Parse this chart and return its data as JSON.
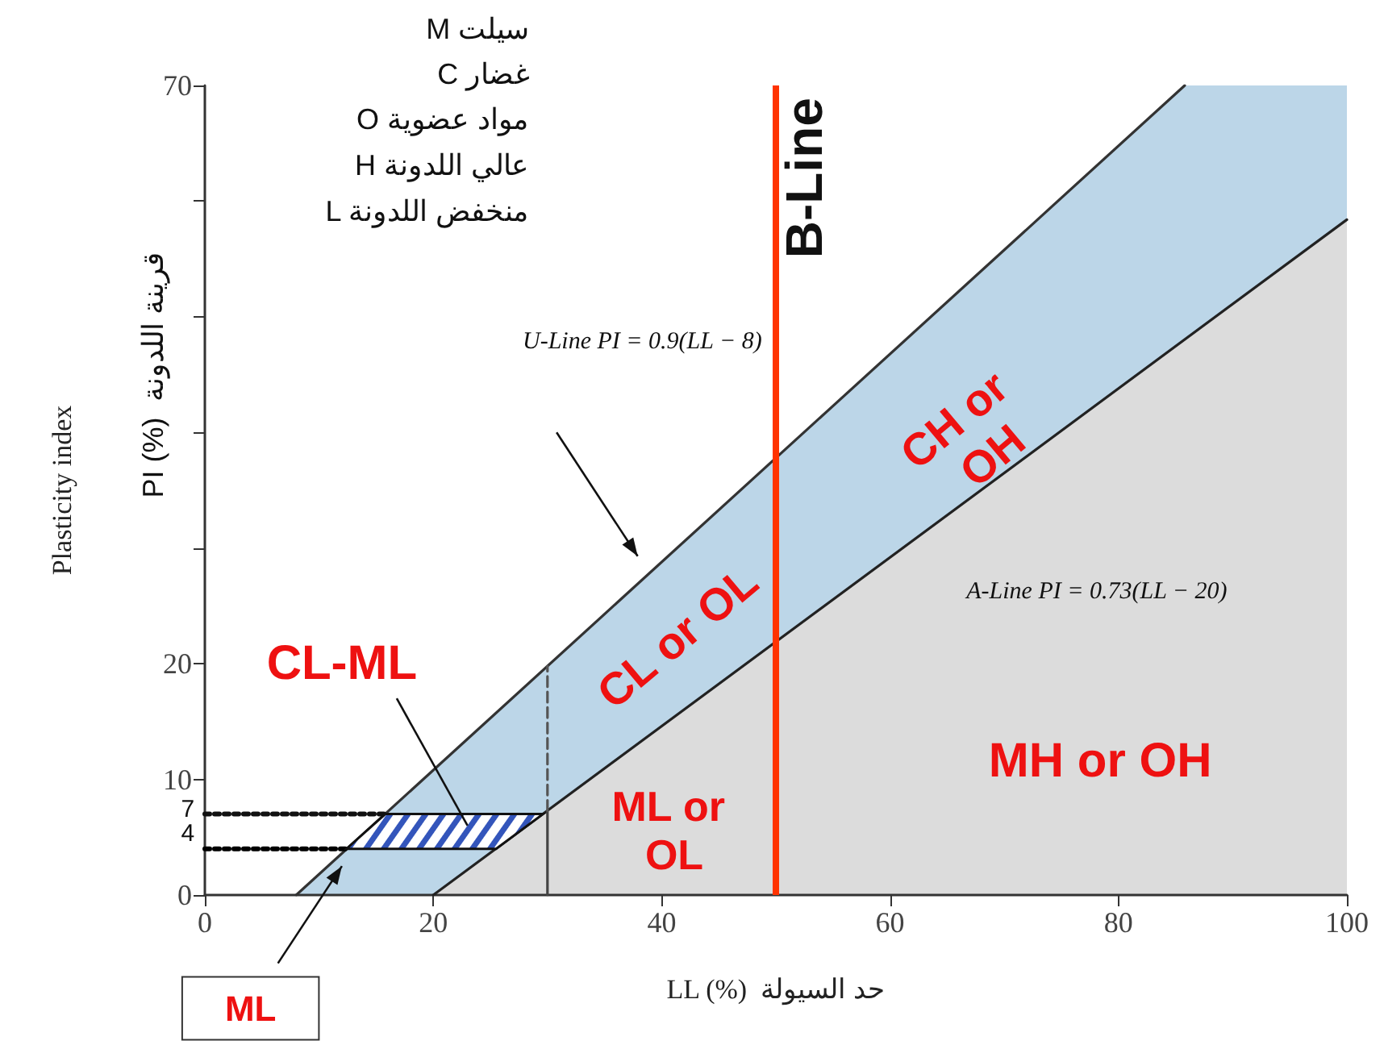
{
  "chart_data": {
    "type": "line",
    "xlabel": "LL (%)  حد السيولة",
    "ylabel": "Plasticity index",
    "xlim": [
      0,
      100
    ],
    "xticks": [
      0,
      20,
      40,
      60,
      80,
      100
    ],
    "ylim": [
      0,
      70
    ],
    "yticks": [
      0,
      10,
      20,
      {
        "value": 30,
        "label": null
      },
      {
        "value": 40,
        "label": null
      },
      {
        "value": 50,
        "label": null
      },
      {
        "value": 60,
        "label": null
      },
      70
    ],
    "grid": false,
    "marker": "none",
    "series": [
      {
        "color": "#333333",
        "x": [
          8,
          85.8
        ],
        "values": [
          0,
          70
        ]
      },
      {
        "color": "#222222",
        "x": [
          20,
          100
        ],
        "values": [
          0,
          58.4
        ]
      },
      {
        "color": "#444444",
        "x": [
          30,
          30
        ],
        "values": [
          0,
          7.3
        ]
      },
      {
        "color": "#555555",
        "line_style": "dashed",
        "x": [
          30,
          30
        ],
        "values": [
          7.3,
          19.8
        ]
      },
      {
        "color": "#000000",
        "line_style": "dotted",
        "x": [
          0,
          12.4
        ],
        "values": [
          4,
          4
        ]
      },
      {
        "color": "#111111",
        "line_style": "dotted",
        "x": [
          0,
          15.8
        ],
        "values": [
          7,
          7
        ]
      }
    ],
    "ref_lines": [
      {
        "axis": "x",
        "value": 50,
        "label": "B-Line",
        "color": "#ff3300"
      }
    ],
    "annotations": [
      "M سيلت",
      "C غضار",
      "O مواد عضوية",
      "H عالي اللدونة",
      "L منخفض اللدونة",
      "U-Line PI = 0.9(LL − 8)",
      "A-Line PI = 0.73(LL − 20)",
      "CL-ML",
      "CL or OL",
      "CH or OH",
      "ML or OL",
      "MH or OH",
      "ML",
      "7",
      "4",
      "PI (%)  قرينة اللدونة"
    ]
  }
}
